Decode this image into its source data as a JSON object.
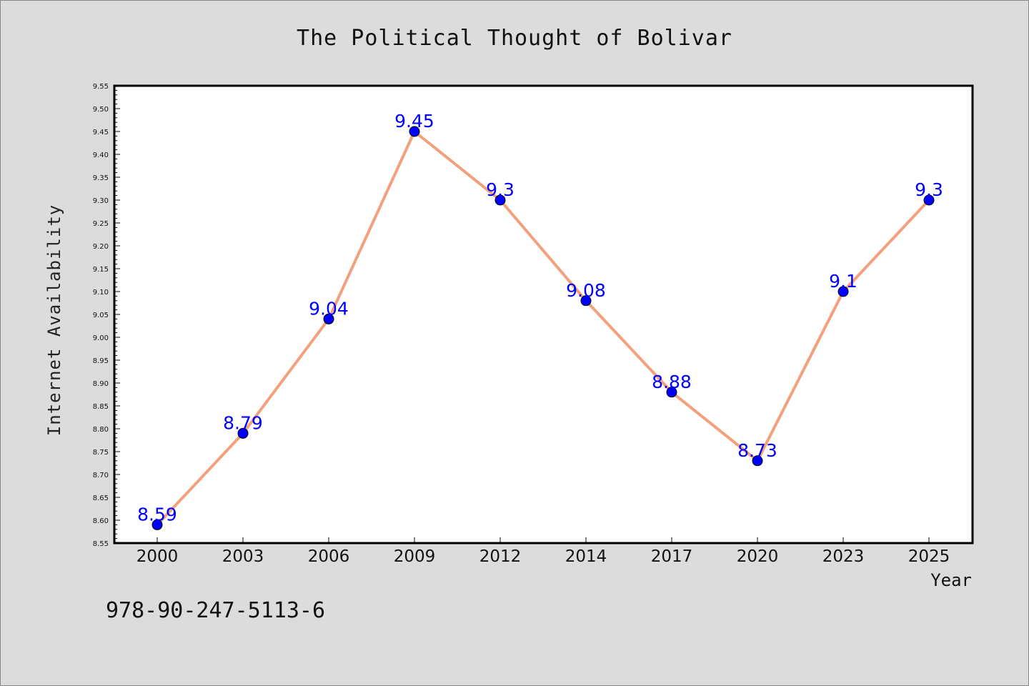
{
  "chart_data": {
    "type": "line",
    "title": "The Political Thought of Bolivar",
    "xlabel": "Year",
    "ylabel": "Internet Availability",
    "categories": [
      "2000",
      "2003",
      "2006",
      "2009",
      "2012",
      "2014",
      "2017",
      "2020",
      "2023",
      "2025"
    ],
    "series": [
      {
        "values": [
          8.59,
          8.79,
          9.04,
          9.45,
          9.3,
          9.08,
          8.88,
          8.73,
          9.1,
          9.3
        ],
        "data_labels": [
          "8.59",
          "8.79",
          "9.04",
          "9.45",
          "9.3",
          "9.08",
          "8.88",
          "8.73",
          "9.1",
          "9.3"
        ],
        "line_color": "#f4a07c",
        "marker_color": "#0000ff"
      }
    ],
    "ylim": [
      8.55,
      9.55
    ],
    "ytick_labels": [
      "8.55",
      "8.60",
      "8.65",
      "8.70",
      "8.75",
      "8.80",
      "8.85",
      "8.90",
      "8.95",
      "9.00",
      "9.05",
      "9.10",
      "9.15",
      "9.20",
      "9.25",
      "9.30",
      "9.35",
      "9.40",
      "9.45",
      "9.50",
      "9.55"
    ],
    "grid": false,
    "legend": "none",
    "background_color": "#dcdcdc",
    "plot_background_color": "#ffffff",
    "label_color": "#0000ff"
  },
  "footer": {
    "isbn": "978-90-247-5113-6"
  }
}
